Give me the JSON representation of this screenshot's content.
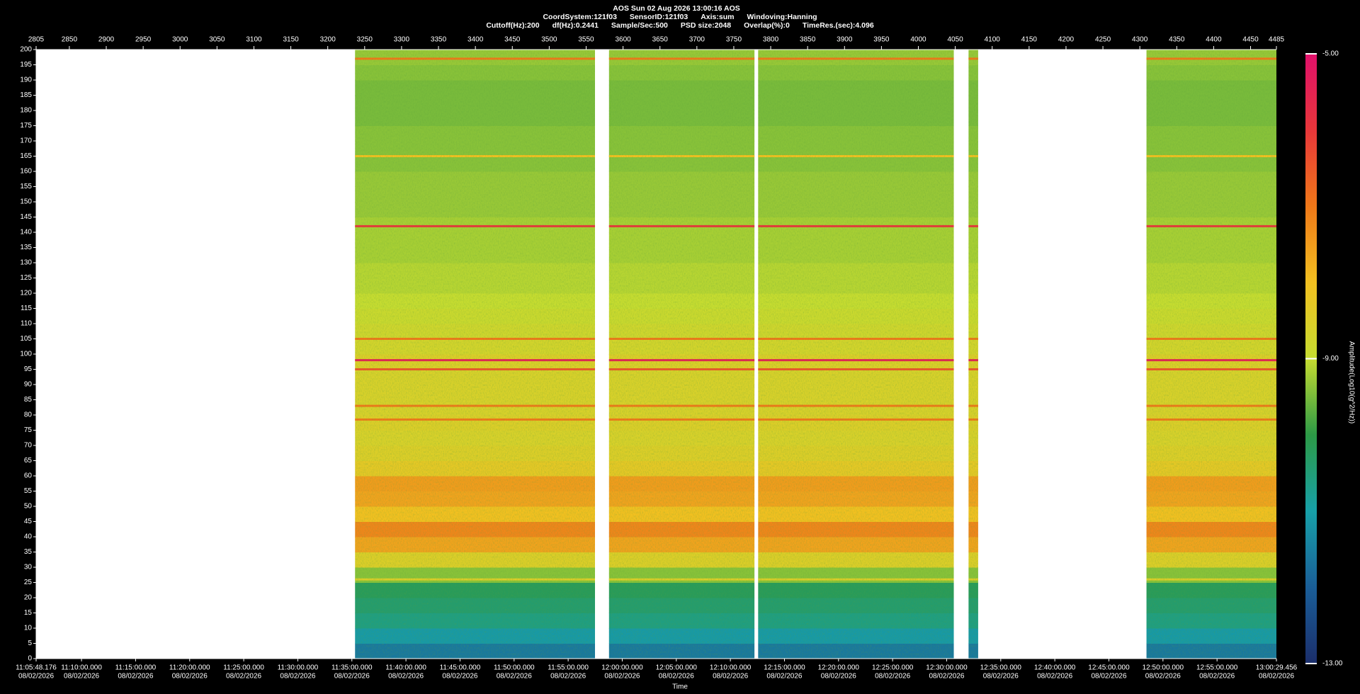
{
  "chart_data": {
    "type": "heatmap",
    "title": "AOS  Sun 02 Aug 2026 13:00:16  AOS",
    "subtitle_lines": [
      [
        "CoordSystem:121f03",
        "SensorID:121f03",
        "Axis:sum",
        "Windoving:Hanning"
      ],
      [
        "Cuttoff(Hz):200",
        "df(Hz):0.2441",
        "Sample/Sec:500",
        "PSD size:2048",
        "Overlap(%):0",
        "TimeRes.(sec):4.096"
      ]
    ],
    "x_label": "Time",
    "colorbar_label": "Amplitude(Log10(g^2/Hz))",
    "xlim": [
      2805,
      4485
    ],
    "xticks": [
      2805,
      2850,
      2900,
      2950,
      3000,
      3050,
      3100,
      3150,
      3200,
      3250,
      3300,
      3350,
      3400,
      3450,
      3500,
      3550,
      3600,
      3650,
      3700,
      3750,
      3800,
      3850,
      3900,
      3950,
      4000,
      4050,
      4100,
      4150,
      4200,
      4250,
      4300,
      4350,
      4400,
      4450,
      4485
    ],
    "ylim": [
      0,
      200
    ],
    "yticks": [
      0,
      5,
      10,
      15,
      20,
      25,
      30,
      35,
      40,
      45,
      50,
      55,
      60,
      65,
      70,
      75,
      80,
      85,
      90,
      95,
      100,
      105,
      110,
      115,
      120,
      125,
      130,
      135,
      140,
      145,
      150,
      155,
      160,
      165,
      170,
      175,
      180,
      185,
      190,
      195,
      200
    ],
    "time_ticks": [
      {
        "time": "11:05:48.176",
        "date": "08/02/2026"
      },
      {
        "time": "11:10:00.000",
        "date": "08/02/2026"
      },
      {
        "time": "11:15:00.000",
        "date": "08/02/2026"
      },
      {
        "time": "11:20:00.000",
        "date": "08/02/2026"
      },
      {
        "time": "11:25:00.000",
        "date": "08/02/2026"
      },
      {
        "time": "11:30:00.000",
        "date": "08/02/2026"
      },
      {
        "time": "11:35:00.000",
        "date": "08/02/2026"
      },
      {
        "time": "11:40:00.000",
        "date": "08/02/2026"
      },
      {
        "time": "11:45:00.000",
        "date": "08/02/2026"
      },
      {
        "time": "11:50:00.000",
        "date": "08/02/2026"
      },
      {
        "time": "11:55:00.000",
        "date": "08/02/2026"
      },
      {
        "time": "12:00:00.000",
        "date": "08/02/2026"
      },
      {
        "time": "12:05:00.000",
        "date": "08/02/2026"
      },
      {
        "time": "12:10:00.000",
        "date": "08/02/2026"
      },
      {
        "time": "12:15:00.000",
        "date": "08/02/2026"
      },
      {
        "time": "12:20:00.000",
        "date": "08/02/2026"
      },
      {
        "time": "12:25:00.000",
        "date": "08/02/2026"
      },
      {
        "time": "12:30:00.000",
        "date": "08/02/2026"
      },
      {
        "time": "12:35:00.000",
        "date": "08/02/2026"
      },
      {
        "time": "12:40:00.000",
        "date": "08/02/2026"
      },
      {
        "time": "12:45:00.000",
        "date": "08/02/2026"
      },
      {
        "time": "12:50:00.000",
        "date": "08/02/2026"
      },
      {
        "time": "12:55:00.000",
        "date": "08/02/2026"
      },
      {
        "time": "13:00:29.456",
        "date": "08/02/2026"
      }
    ],
    "x_segments": [
      [
        3237,
        3562
      ],
      [
        3581,
        3778
      ],
      [
        3783,
        4048
      ],
      [
        4068,
        4081
      ],
      [
        4309,
        4485
      ]
    ],
    "y_bins": [
      0,
      5,
      10,
      15,
      20,
      25,
      30,
      35,
      40,
      45,
      50,
      55,
      60,
      65,
      70,
      75,
      80,
      85,
      90,
      95,
      100,
      105,
      110,
      115,
      120,
      125,
      130,
      135,
      140,
      145,
      150,
      155,
      160,
      165,
      170,
      175,
      180,
      185,
      190,
      195,
      200
    ],
    "values": [
      -11.6,
      -11.1,
      -10.6,
      -10.4,
      -10.2,
      -9.4,
      -8.5,
      -7.6,
      -7.2,
      -8.0,
      -7.6,
      -7.5,
      -8.3,
      -8.5,
      -8.6,
      -8.5,
      -8.6,
      -8.6,
      -8.6,
      -8.5,
      -8.7,
      -8.8,
      -8.9,
      -9.0,
      -9.1,
      -9.1,
      -9.2,
      -9.2,
      -9.2,
      -9.3,
      -9.3,
      -9.3,
      -9.4,
      -9.4,
      -9.4,
      -9.5,
      -9.5,
      -9.5,
      -9.4,
      -9.3
    ],
    "lines": [
      {
        "freq": 197,
        "value": -7
      },
      {
        "freq": 165,
        "value": -8
      },
      {
        "freq": 142,
        "value": -6
      },
      {
        "freq": 105,
        "value": -7
      },
      {
        "freq": 98,
        "value": -5.5
      },
      {
        "freq": 95,
        "value": -6.5
      },
      {
        "freq": 83,
        "value": -7
      },
      {
        "freq": 78.5,
        "value": -7
      },
      {
        "freq": 26,
        "value": -8.5
      }
    ],
    "clim": [
      -13,
      -5
    ],
    "cticks": [
      {
        "value": -5,
        "label": "-5.00"
      },
      {
        "value": -9,
        "label": "-9.00"
      },
      {
        "value": -13,
        "label": "-13.00"
      }
    ],
    "colormap": [
      "#1b2e6b",
      "#1a5e98",
      "#17a0a8",
      "#2c9a46",
      "#c6dc30",
      "#f2c020",
      "#f07818",
      "#e8363a",
      "#e0106a"
    ]
  }
}
